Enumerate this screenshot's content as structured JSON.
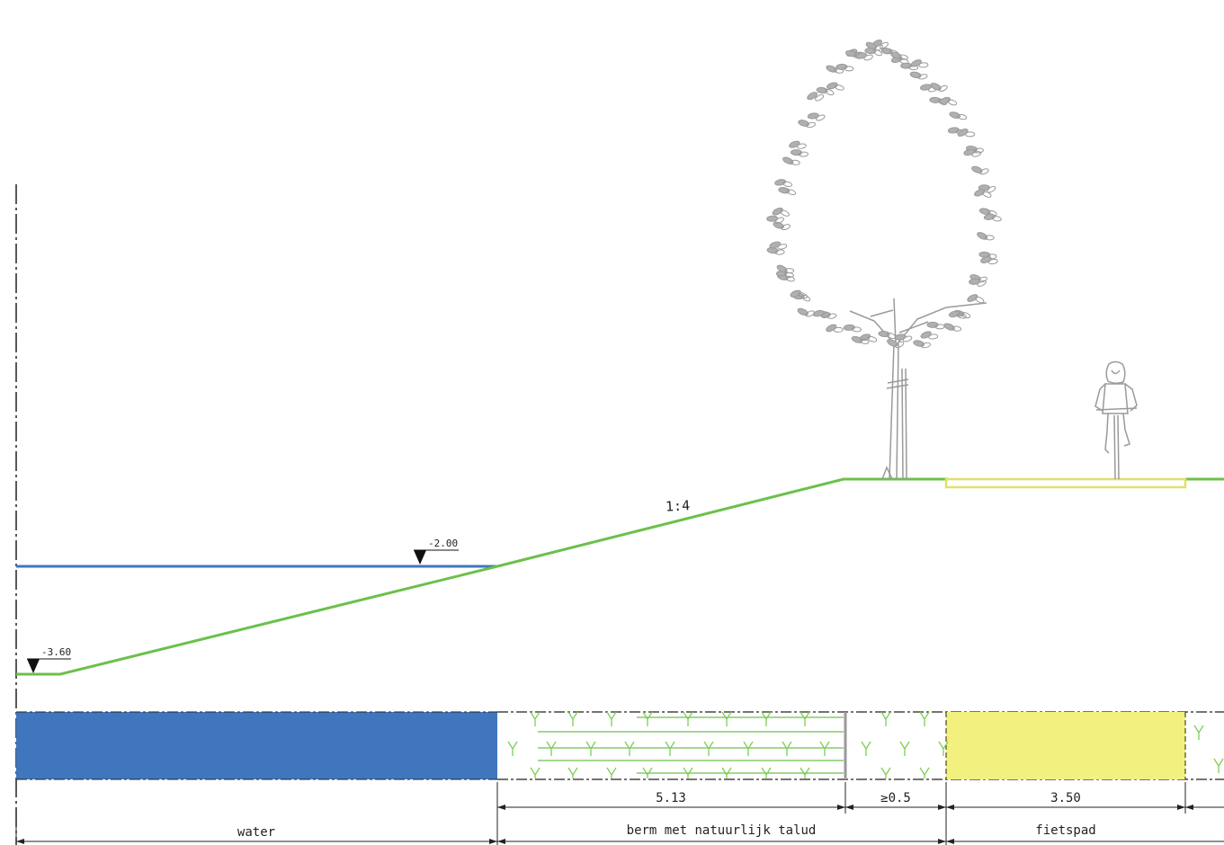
{
  "profile": {
    "slope_label": "1:4",
    "levels": [
      {
        "id": "water-level",
        "label": "-2.00"
      },
      {
        "id": "bottom-level",
        "label": "-3.60"
      }
    ]
  },
  "dimensions": {
    "widths": [
      "5.13",
      "≥0.5",
      "3.50"
    ],
    "zones": [
      "water",
      "berm met natuurlijk talud",
      "fietspad"
    ]
  },
  "colors": {
    "water": "#4076bd",
    "grass_line": "#6cc04a",
    "path_yellow": "#f2f07f",
    "path_outline": "#dfe06a",
    "tree_gray": "#9a9a9a",
    "grass_symbol": "#7dcf55"
  },
  "figures": {
    "tree_icon": "tree-icon",
    "cyclist_icon": "cyclist-icon"
  }
}
